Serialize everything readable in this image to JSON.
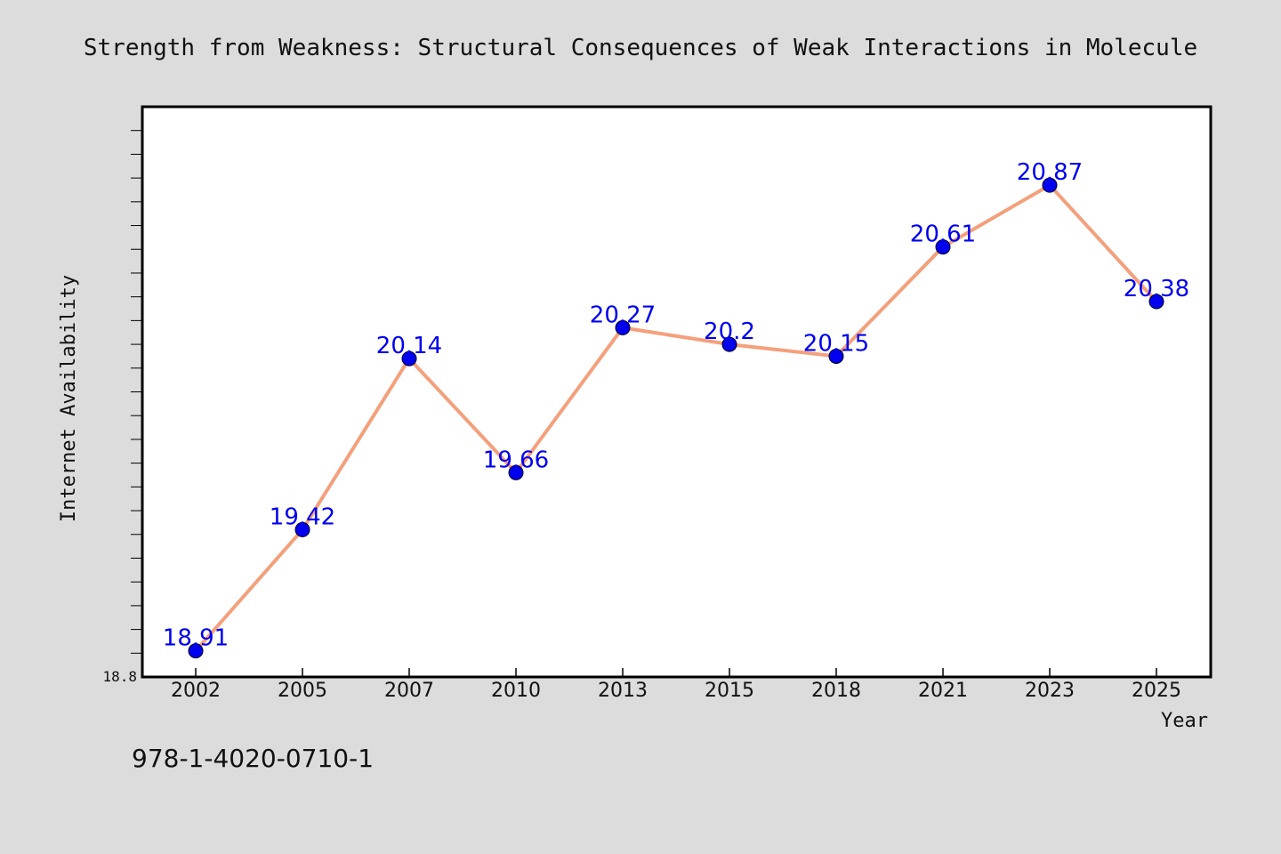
{
  "footer_text": "978-1-4020-0710-1",
  "colors": {
    "background": "#dcdcdc",
    "plot_background": "#ffffff",
    "line": "#f4a07c",
    "marker": "#0000ee",
    "data_label": "#0000ee",
    "frame": "#000000"
  },
  "chart_data": {
    "type": "line",
    "title": "Strength from Weakness: Structural Consequences of Weak Interactions in Molecule",
    "xlabel": "Year",
    "ylabel": "Internet Availability",
    "categories": [
      "2002",
      "2005",
      "2007",
      "2010",
      "2013",
      "2015",
      "2018",
      "2021",
      "2023",
      "2025"
    ],
    "series": [
      {
        "values": [
          18.91,
          19.42,
          20.14,
          19.66,
          20.27,
          20.2,
          20.15,
          20.61,
          20.87,
          20.38
        ],
        "data_labels": [
          "18.91",
          "19.42",
          "20.14",
          "19.66",
          "20.27",
          "20.2",
          "20.15",
          "20.61",
          "20.87",
          "20.38"
        ]
      }
    ],
    "yticks": [
      {
        "value": 18.8,
        "label": "18.8"
      }
    ],
    "ylim": [
      18.8,
      21.2
    ],
    "minor_tick_step": 0.1,
    "grid": false,
    "legend": "none"
  }
}
